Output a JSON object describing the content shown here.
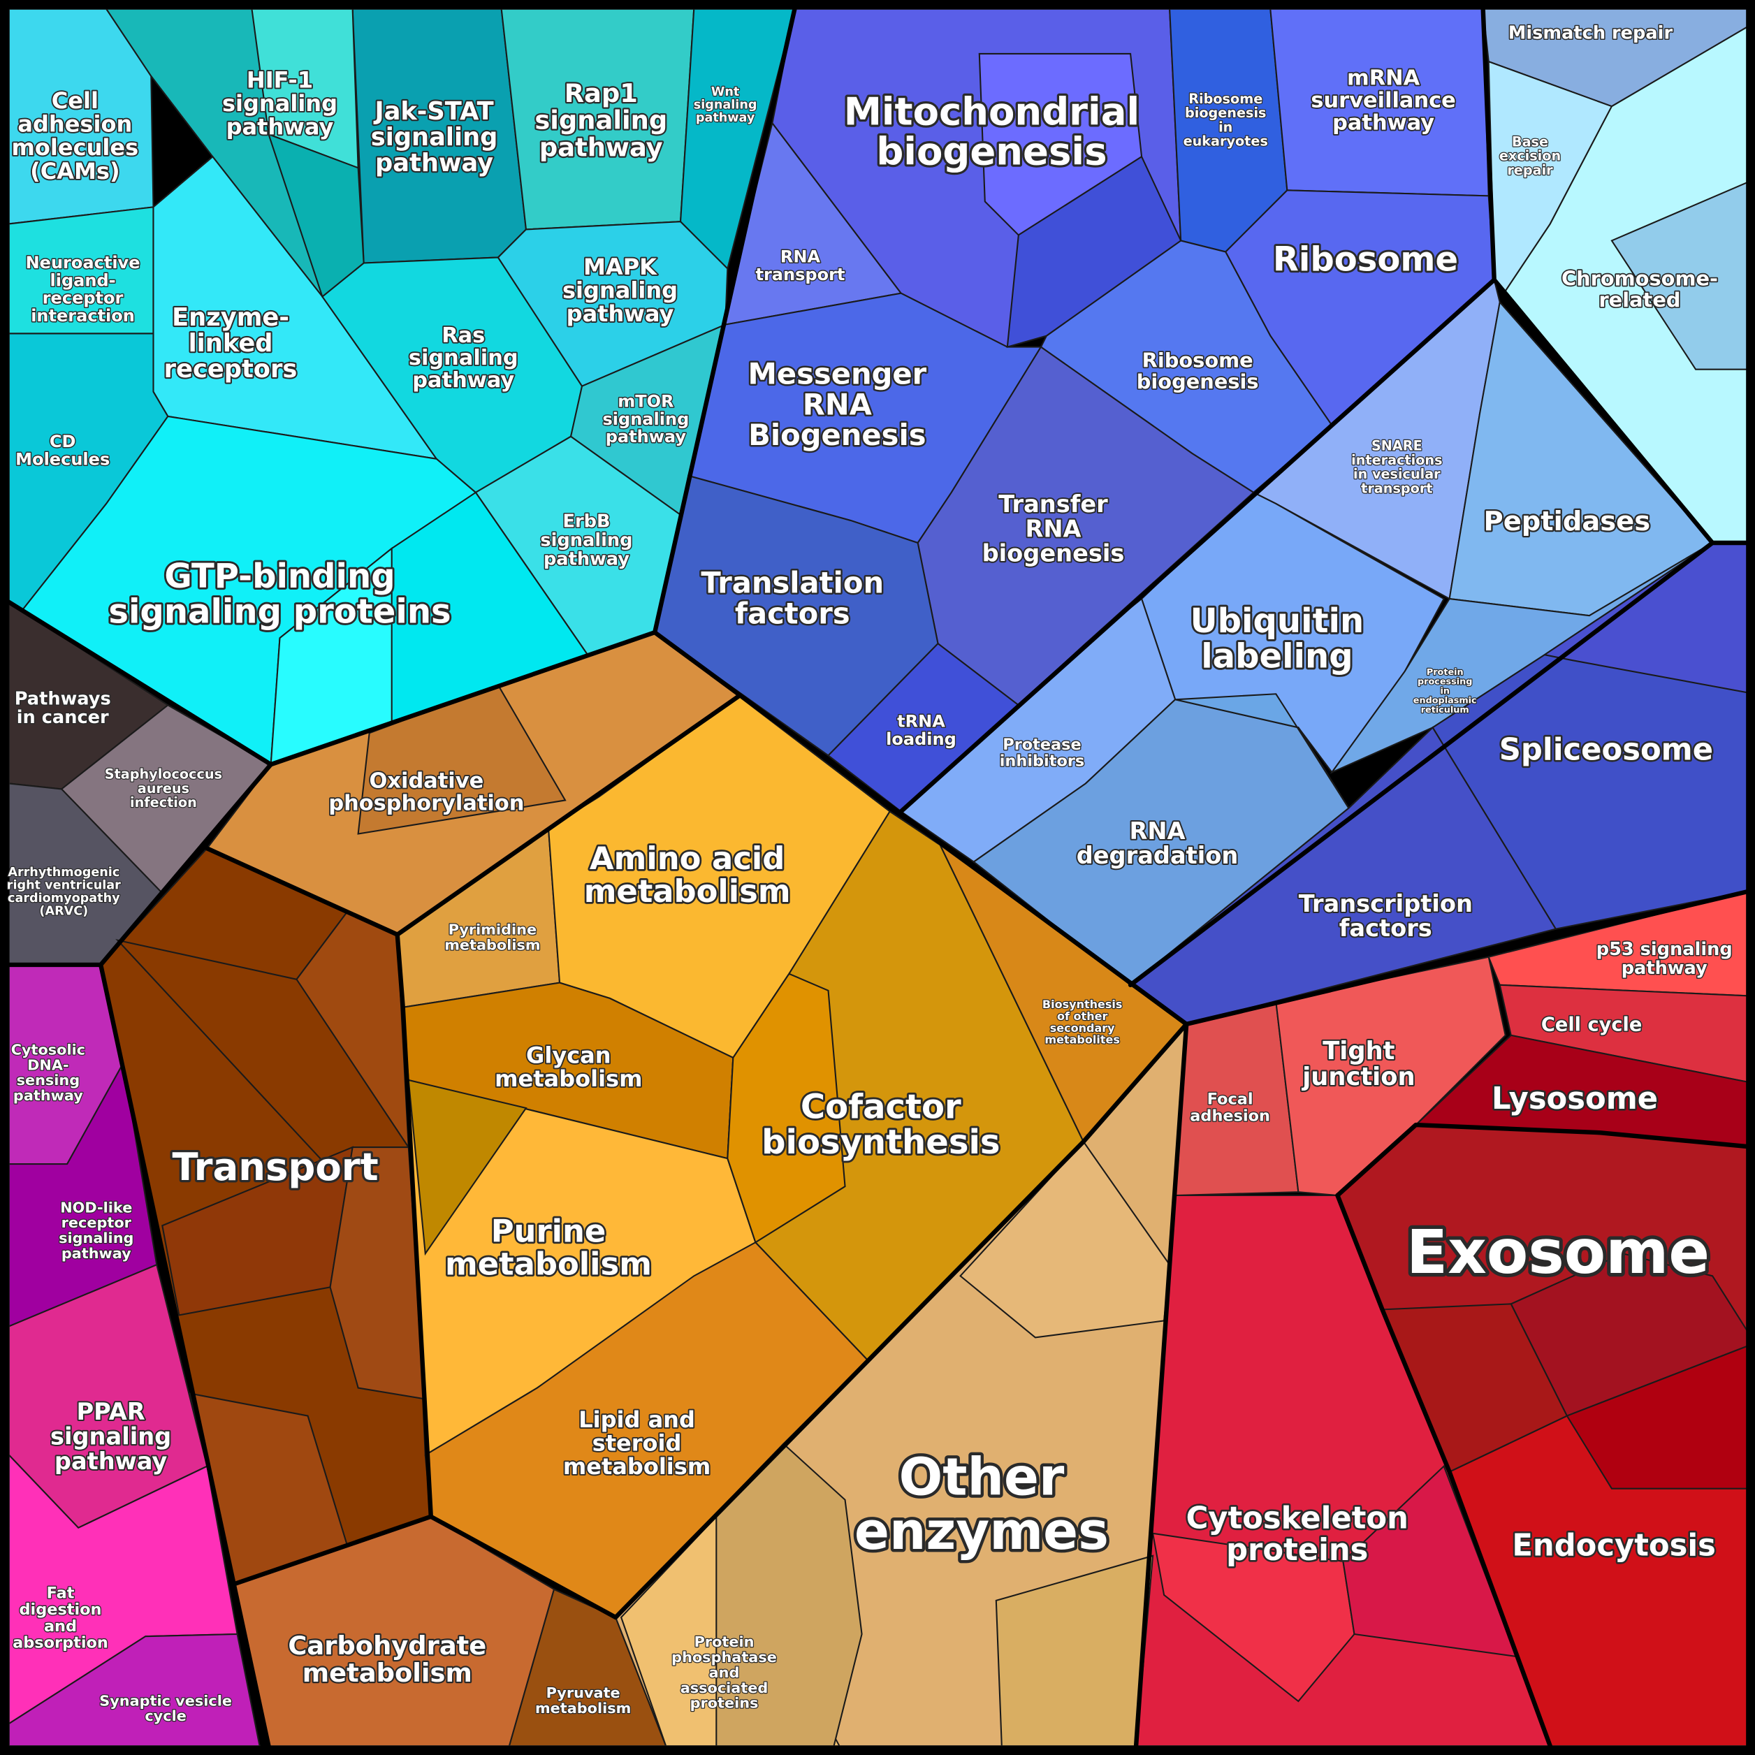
{
  "regions": [
    {
      "label": [
        "Cell",
        "adhesion",
        "molecules",
        "(CAMs)"
      ]
    },
    {
      "label": [
        "HIF-1",
        "signaling",
        "pathway"
      ]
    },
    {
      "label": [
        "Jak-STAT",
        "signaling",
        "pathway"
      ]
    },
    {
      "label": [
        "Rap1",
        "signaling",
        "pathway"
      ]
    },
    {
      "label": [
        "Wnt",
        "signaling",
        "pathway"
      ]
    },
    {
      "label": [
        "Neuroactive",
        "ligand-",
        "receptor",
        "interaction"
      ]
    },
    {
      "label": [
        "Enzyme-",
        "linked",
        "receptors"
      ]
    },
    {
      "label": [
        "CD",
        "Molecules"
      ]
    },
    {
      "label": [
        "Ras",
        "signaling",
        "pathway"
      ]
    },
    {
      "label": [
        "MAPK",
        "signaling",
        "pathway"
      ]
    },
    {
      "label": [
        "mTOR",
        "signaling",
        "pathway"
      ]
    },
    {
      "label": [
        "ErbB",
        "signaling",
        "pathway"
      ]
    },
    {
      "label": [
        "GTP-binding",
        "signaling proteins"
      ]
    },
    {
      "label": [
        "Pathways",
        "in cancer"
      ]
    },
    {
      "label": [
        "Staphylococcus",
        "aureus",
        "infection"
      ]
    },
    {
      "label": [
        "Arrhythmogenic",
        "right ventricular",
        "cardiomyopathy",
        "(ARVC)"
      ]
    },
    {
      "label": [
        "Cytosolic",
        "DNA-",
        "sensing",
        "pathway"
      ]
    },
    {
      "label": [
        "NOD-like",
        "receptor",
        "signaling",
        "pathway"
      ]
    },
    {
      "label": [
        "PPAR",
        "signaling",
        "pathway"
      ]
    },
    {
      "label": [
        "Fat",
        "digestion",
        "and",
        "absorption"
      ]
    },
    {
      "label": [
        "Synaptic vesicle",
        "cycle"
      ]
    },
    {
      "label": [
        "Oxidative",
        "phosphorylation"
      ]
    },
    {
      "label": [
        "Transport"
      ]
    },
    {
      "label": [
        "Carbohydrate",
        "metabolism"
      ]
    },
    {
      "label": [
        "Pyruvate",
        "metabolism"
      ]
    },
    {
      "label": [
        "Pyrimidine",
        "metabolism"
      ]
    },
    {
      "label": [
        "Amino acid",
        "metabolism"
      ]
    },
    {
      "label": [
        "Glycan",
        "metabolism"
      ]
    },
    {
      "label": [
        "Cofactor",
        "biosynthesis"
      ]
    },
    {
      "label": [
        "Biosynthesis",
        "of other",
        "secondary",
        "metabolites"
      ]
    },
    {
      "label": [
        "Purine",
        "metabolism"
      ]
    },
    {
      "label": [
        "Lipid and",
        "steroid",
        "metabolism"
      ]
    },
    {
      "label": [
        "Other",
        "enzymes"
      ]
    },
    {
      "label": [
        "Protein",
        "phosphatase",
        "and",
        "associated",
        "proteins"
      ]
    },
    {
      "label": [
        "Mitochondrial",
        "biogenesis"
      ]
    },
    {
      "label": [
        "RNA",
        "transport"
      ]
    },
    {
      "label": [
        "Ribosome",
        "biogenesis",
        "in",
        "eukaryotes"
      ]
    },
    {
      "label": [
        "mRNA",
        "surveillance",
        "pathway"
      ]
    },
    {
      "label": [
        "Ribosome"
      ]
    },
    {
      "label": [
        "Ribosome",
        "biogenesis"
      ]
    },
    {
      "label": [
        "Messenger",
        "RNA",
        "Biogenesis"
      ]
    },
    {
      "label": [
        "Transfer",
        "RNA",
        "biogenesis"
      ]
    },
    {
      "label": [
        "Translation",
        "factors"
      ]
    },
    {
      "label": [
        "tRNA",
        "loading"
      ]
    },
    {
      "label": [
        "SNARE",
        "interactions",
        "in vesicular",
        "transport"
      ]
    },
    {
      "label": [
        "Peptidases"
      ]
    },
    {
      "label": [
        "Ubiquitin",
        "labeling"
      ]
    },
    {
      "label": [
        "Protein",
        "processing",
        "in",
        "endoplasmic",
        "reticulum"
      ]
    },
    {
      "label": [
        "Protease",
        "inhibitors"
      ]
    },
    {
      "label": [
        "RNA",
        "degradation"
      ]
    },
    {
      "label": [
        "Spliceosome"
      ]
    },
    {
      "label": [
        "Transcription",
        "factors"
      ]
    },
    {
      "label": [
        "Mismatch repair"
      ]
    },
    {
      "label": [
        "Base",
        "excision",
        "repair"
      ]
    },
    {
      "label": [
        "Chromosome-",
        "related"
      ]
    },
    {
      "label": [
        "Focal",
        "adhesion"
      ]
    },
    {
      "label": [
        "Tight",
        "junction"
      ]
    },
    {
      "label": [
        "p53 signaling",
        "pathway"
      ]
    },
    {
      "label": [
        "Cell cycle"
      ]
    },
    {
      "label": [
        "Lysosome"
      ]
    },
    {
      "label": [
        "Exosome"
      ]
    },
    {
      "label": [
        "Cytoskeleton",
        "proteins"
      ]
    },
    {
      "label": [
        "Endocytosis"
      ]
    }
  ]
}
